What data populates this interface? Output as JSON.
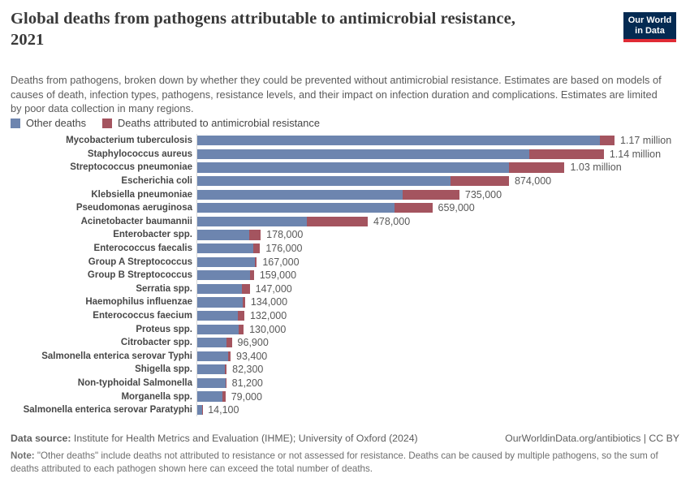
{
  "header": {
    "title_line1": "Global deaths from pathogens attributable to antimicrobial resistance,",
    "title_line2": "2021",
    "subtitle": "Deaths from pathogens, broken down by whether they could be prevented without antimicrobial resistance. Estimates are based on models of causes of death, infection types, pathogens, resistance levels, and their impact on infection duration and complications. Estimates are limited by poor data collection in many regions.",
    "logo": {
      "line1": "Our World",
      "line2": "in Data"
    }
  },
  "colors": {
    "other_deaths": "#6d85af",
    "amr_deaths": "#a4545f",
    "logo_navy": "#042a52",
    "logo_red": "#e02b35",
    "axis_line": "#d9d9d9"
  },
  "legend": [
    {
      "label": "Other deaths",
      "color": "#6d85af"
    },
    {
      "label": "Deaths attributed to antimicrobial resistance",
      "color": "#a4545f"
    }
  ],
  "chart_data": {
    "type": "bar",
    "orientation": "horizontal",
    "stacked": true,
    "title": "Global deaths from pathogens attributable to antimicrobial resistance, 2021",
    "xlabel": "",
    "ylabel": "",
    "xlim": [
      0,
      1170000
    ],
    "grid": false,
    "legend_position": "top-left",
    "categories": [
      "Mycobacterium tuberculosis",
      "Staphylococcus aureus",
      "Streptococcus pneumoniae",
      "Escherichia coli",
      "Klebsiella pneumoniae",
      "Pseudomonas aeruginosa",
      "Acinetobacter baumannii",
      "Enterobacter spp.",
      "Enterococcus faecalis",
      "Group A Streptococcus",
      "Group B Streptococcus",
      "Serratia spp.",
      "Haemophilus influenzae",
      "Enterococcus faecium",
      "Proteus spp.",
      "Citrobacter spp.",
      "Salmonella enterica serovar Typhi",
      "Shigella spp.",
      "Non-typhoidal Salmonella",
      "Morganella spp.",
      "Salmonella enterica serovar Paratyphi"
    ],
    "series": [
      {
        "name": "Other deaths",
        "color": "#6d85af",
        "values": [
          1130000,
          932000,
          874000,
          711000,
          577000,
          554000,
          308000,
          146000,
          156000,
          161000,
          148000,
          126000,
          128000,
          113000,
          115000,
          82900,
          86900,
          76300,
          79200,
          71000,
          13700
        ]
      },
      {
        "name": "Deaths attributed to antimicrobial resistance",
        "color": "#a4545f",
        "values": [
          40000,
          208000,
          156000,
          163000,
          158000,
          105000,
          170000,
          32000,
          20000,
          6000,
          11000,
          21000,
          6000,
          19000,
          15000,
          14000,
          6500,
          6000,
          2000,
          8000,
          400
        ]
      }
    ],
    "totals": [
      1170000,
      1140000,
      1030000,
      874000,
      735000,
      659000,
      478000,
      178000,
      176000,
      167000,
      159000,
      147000,
      134000,
      132000,
      130000,
      96900,
      93400,
      82300,
      81200,
      79000,
      14100
    ],
    "total_labels": [
      "1.17 million",
      "1.14 million",
      "1.03 million",
      "874,000",
      "735,000",
      "659,000",
      "478,000",
      "178,000",
      "176,000",
      "167,000",
      "159,000",
      "147,000",
      "134,000",
      "132,000",
      "130,000",
      "96,900",
      "93,400",
      "82,300",
      "81,200",
      "79,000",
      "14,100"
    ]
  },
  "footer": {
    "source_prefix": "Data source:",
    "source_text": " Institute for Health Metrics and Evaluation (IHME); University of Oxford (2024)",
    "link_text": "OurWorldinData.org/antibiotics | CC BY",
    "note_prefix": "Note:",
    "note_text": " \"Other deaths\" include deaths not attributed to resistance or not assessed for resistance. Deaths can be caused by multiple pathogens, so the sum of deaths attributed to each pathogen shown here can exceed the total number of deaths."
  }
}
